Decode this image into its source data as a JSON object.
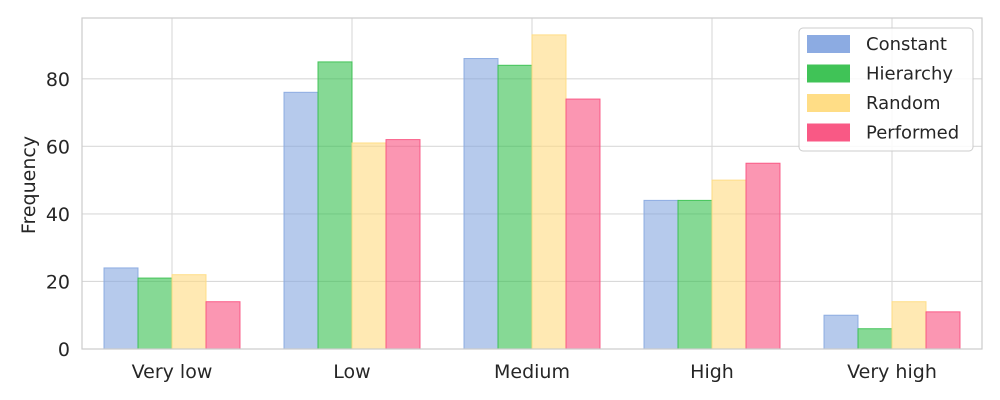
{
  "chart_data": {
    "type": "bar",
    "title": "",
    "xlabel": "",
    "ylabel": "Frequency",
    "categories": [
      "Very low",
      "Low",
      "Medium",
      "High",
      "Very high"
    ],
    "series": [
      {
        "name": "Constant",
        "color": "#86a7e0",
        "values": [
          24,
          76,
          86,
          44,
          10
        ]
      },
      {
        "name": "Hierarchy",
        "color": "#36c04e",
        "values": [
          21,
          85,
          84,
          44,
          6
        ]
      },
      {
        "name": "Random",
        "color": "#ffdb80",
        "values": [
          22,
          61,
          93,
          50,
          14
        ]
      },
      {
        "name": "Performed",
        "color": "#f9507e",
        "values": [
          14,
          62,
          74,
          55,
          11
        ]
      }
    ],
    "ylim": [
      0,
      98
    ],
    "yticks": [
      0,
      20,
      40,
      60,
      80
    ],
    "grid": true,
    "legend_position": "top-right"
  }
}
